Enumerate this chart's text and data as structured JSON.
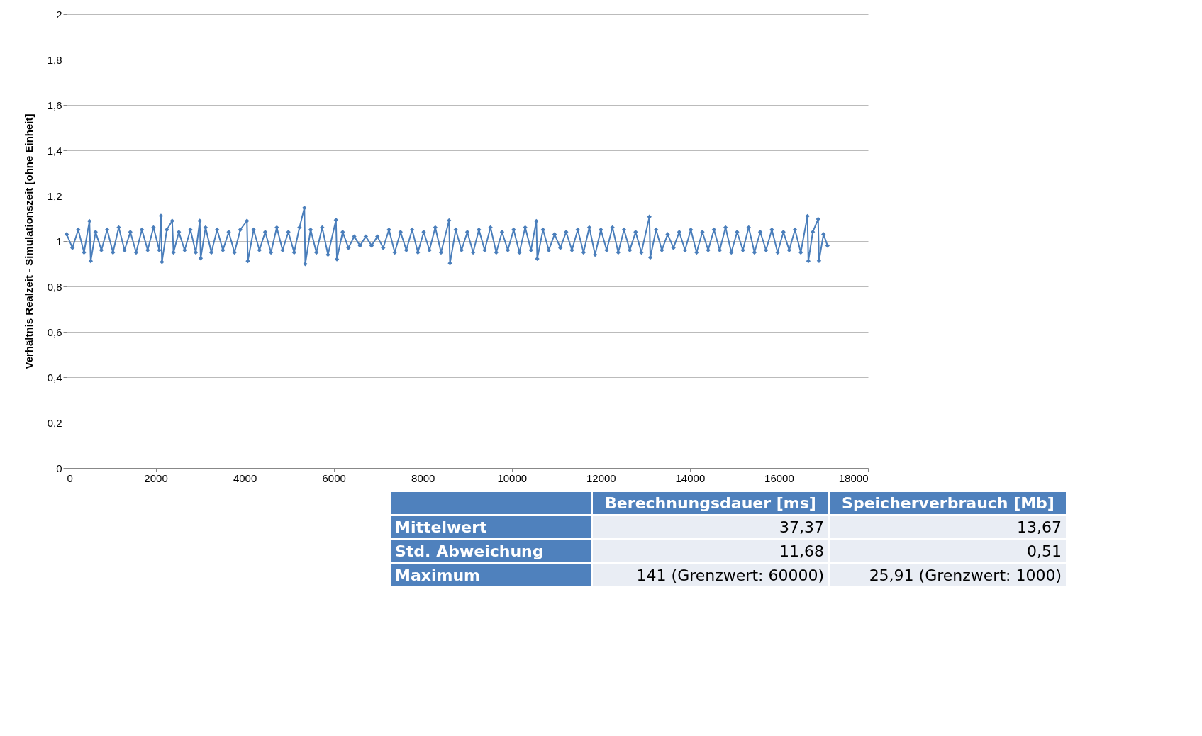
{
  "chart_data": [
    {
      "type": "line",
      "ylabel": "Verhältnis Realzeit - Simulationszeit [ohne Einheit]",
      "marker": "diamond",
      "line_style": "solid",
      "grid": "y",
      "xlim": [
        0,
        18000
      ],
      "xticks": [
        0,
        2000,
        4000,
        6000,
        8000,
        10000,
        12000,
        14000,
        16000,
        18000
      ],
      "ylim": [
        0,
        2
      ],
      "yticks": [
        0,
        {
          "value": 0.2,
          "label": "0,2"
        },
        {
          "value": 0.4,
          "label": "0,4"
        },
        {
          "value": 0.6,
          "label": "0,6"
        },
        {
          "value": 0.8,
          "label": "0,8"
        },
        1,
        {
          "value": 1.2,
          "label": "1,2"
        },
        {
          "value": 1.4,
          "label": "1,4"
        },
        {
          "value": 1.6,
          "label": "1,6"
        },
        {
          "value": 1.8,
          "label": "1,8"
        },
        2
      ],
      "series": [
        {
          "color": "#4a7ebb",
          "x": [
            0,
            130,
            260,
            390,
            512,
            540,
            650,
            780,
            910,
            1040,
            1170,
            1300,
            1430,
            1560,
            1690,
            1820,
            1950,
            2080,
            2118,
            2140,
            2250,
            2370,
            2400,
            2520,
            2650,
            2780,
            2900,
            2990,
            3010,
            3120,
            3250,
            3380,
            3510,
            3640,
            3770,
            3900,
            4050,
            4070,
            4200,
            4330,
            4460,
            4590,
            4720,
            4850,
            4980,
            5110,
            5230,
            5340,
            5360,
            5480,
            5610,
            5740,
            5870,
            6050,
            6070,
            6200,
            6330,
            6460,
            6590,
            6720,
            6850,
            6980,
            7110,
            7240,
            7370,
            7500,
            7630,
            7760,
            7890,
            8020,
            8150,
            8280,
            8410,
            8590,
            8610,
            8740,
            8870,
            9000,
            9130,
            9260,
            9390,
            9520,
            9650,
            9780,
            9910,
            10040,
            10170,
            10300,
            10430,
            10550,
            10570,
            10700,
            10830,
            10960,
            11090,
            11220,
            11350,
            11480,
            11610,
            11740,
            11870,
            12000,
            12130,
            12260,
            12390,
            12520,
            12650,
            12780,
            12910,
            13090,
            13110,
            13240,
            13370,
            13500,
            13630,
            13760,
            13890,
            14020,
            14150,
            14280,
            14410,
            14540,
            14670,
            14800,
            14930,
            15060,
            15190,
            15320,
            15450,
            15580,
            15710,
            15840,
            15970,
            16100,
            16230,
            16360,
            16490,
            16640,
            16660,
            16760,
            16880,
            16900,
            17000,
            17090
          ],
          "values": [
            1.03,
            0.97,
            1.05,
            0.95,
            1.088,
            0.912,
            1.04,
            0.96,
            1.05,
            0.95,
            1.06,
            0.96,
            1.04,
            0.95,
            1.05,
            0.96,
            1.06,
            0.96,
            1.111,
            0.908,
            1.05,
            1.089,
            0.95,
            1.04,
            0.96,
            1.05,
            0.95,
            1.089,
            0.924,
            1.06,
            0.95,
            1.05,
            0.96,
            1.04,
            0.95,
            1.05,
            1.089,
            0.912,
            1.05,
            0.96,
            1.04,
            0.95,
            1.06,
            0.96,
            1.04,
            0.95,
            1.06,
            1.146,
            0.899,
            1.05,
            0.95,
            1.06,
            0.94,
            1.093,
            0.92,
            1.04,
            0.97,
            1.02,
            0.98,
            1.02,
            0.98,
            1.02,
            0.97,
            1.05,
            0.95,
            1.04,
            0.96,
            1.05,
            0.95,
            1.04,
            0.96,
            1.06,
            0.95,
            1.091,
            0.902,
            1.05,
            0.96,
            1.04,
            0.95,
            1.05,
            0.96,
            1.06,
            0.95,
            1.04,
            0.96,
            1.05,
            0.95,
            1.06,
            0.96,
            1.088,
            0.922,
            1.05,
            0.96,
            1.03,
            0.97,
            1.04,
            0.96,
            1.05,
            0.95,
            1.06,
            0.94,
            1.05,
            0.96,
            1.06,
            0.95,
            1.05,
            0.96,
            1.04,
            0.95,
            1.107,
            0.928,
            1.05,
            0.96,
            1.03,
            0.97,
            1.04,
            0.96,
            1.05,
            0.95,
            1.04,
            0.96,
            1.05,
            0.96,
            1.06,
            0.95,
            1.04,
            0.96,
            1.06,
            0.95,
            1.04,
            0.96,
            1.05,
            0.95,
            1.04,
            0.96,
            1.05,
            0.95,
            1.11,
            0.912,
            1.04,
            1.097,
            0.913,
            1.03,
            0.98
          ]
        }
      ]
    },
    {
      "type": "other",
      "categories": [
        "Berechnungsdauer [ms]",
        "Speicherverbrauch [Mb]"
      ],
      "y_categories": [
        "Mittelwert",
        "Std. Abweichung",
        "Maximum"
      ],
      "cell_labels": [
        [
          "37,37",
          "13,67"
        ],
        [
          "11,68",
          "0,51"
        ],
        [
          "141 (Grenzwert: 60000)",
          "25,91 (Grenzwert: 1000)"
        ]
      ]
    }
  ]
}
